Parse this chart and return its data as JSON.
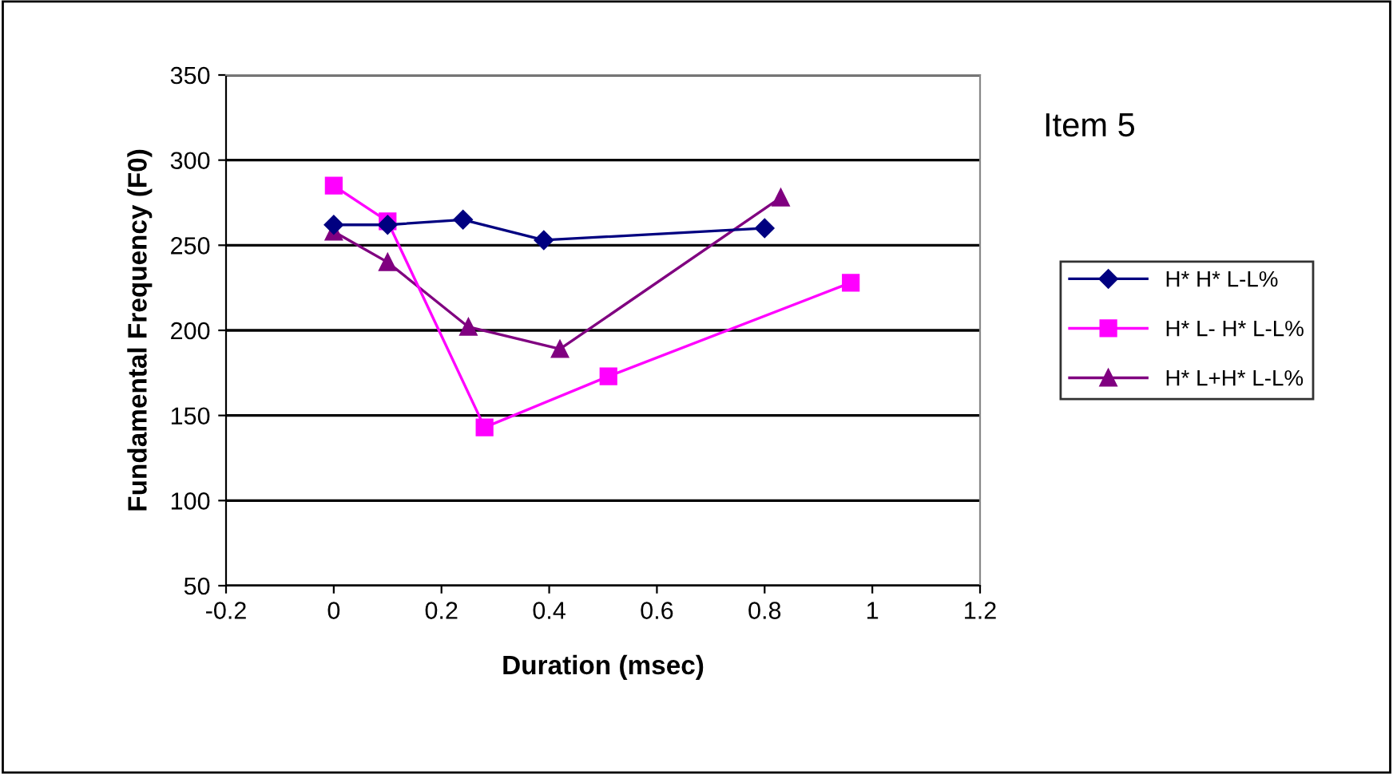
{
  "chart_data": {
    "type": "line",
    "title": "Item 5",
    "xlabel": "Duration (msec)",
    "ylabel": "Fundamental Frequency (F0)",
    "xlim": [
      -0.2,
      1.2
    ],
    "xticks": [
      -0.2,
      0,
      0.2,
      0.4,
      0.6,
      0.8,
      1,
      1.2
    ],
    "ylim": [
      50,
      350
    ],
    "yticks": [
      50,
      100,
      150,
      200,
      250,
      300,
      350
    ],
    "grid": "y",
    "legend": "right",
    "series": [
      {
        "name": "H* H* L-L%",
        "color": "#000080",
        "marker": "diamond",
        "x": [
          0,
          0.1,
          0.24,
          0.39,
          0.8
        ],
        "values": [
          262,
          262,
          265,
          253,
          260
        ]
      },
      {
        "name": "H* L- H* L-L%",
        "color": "#ff00ff",
        "marker": "square",
        "x": [
          0,
          0.1,
          0.28,
          0.51,
          0.96
        ],
        "values": [
          285,
          264,
          143,
          173,
          228
        ]
      },
      {
        "name": "H* L+H* L-L%",
        "color": "#800080",
        "marker": "triangle",
        "x": [
          0,
          0.1,
          0.25,
          0.42,
          0.83
        ],
        "values": [
          258,
          240,
          202,
          189,
          278
        ]
      }
    ]
  }
}
